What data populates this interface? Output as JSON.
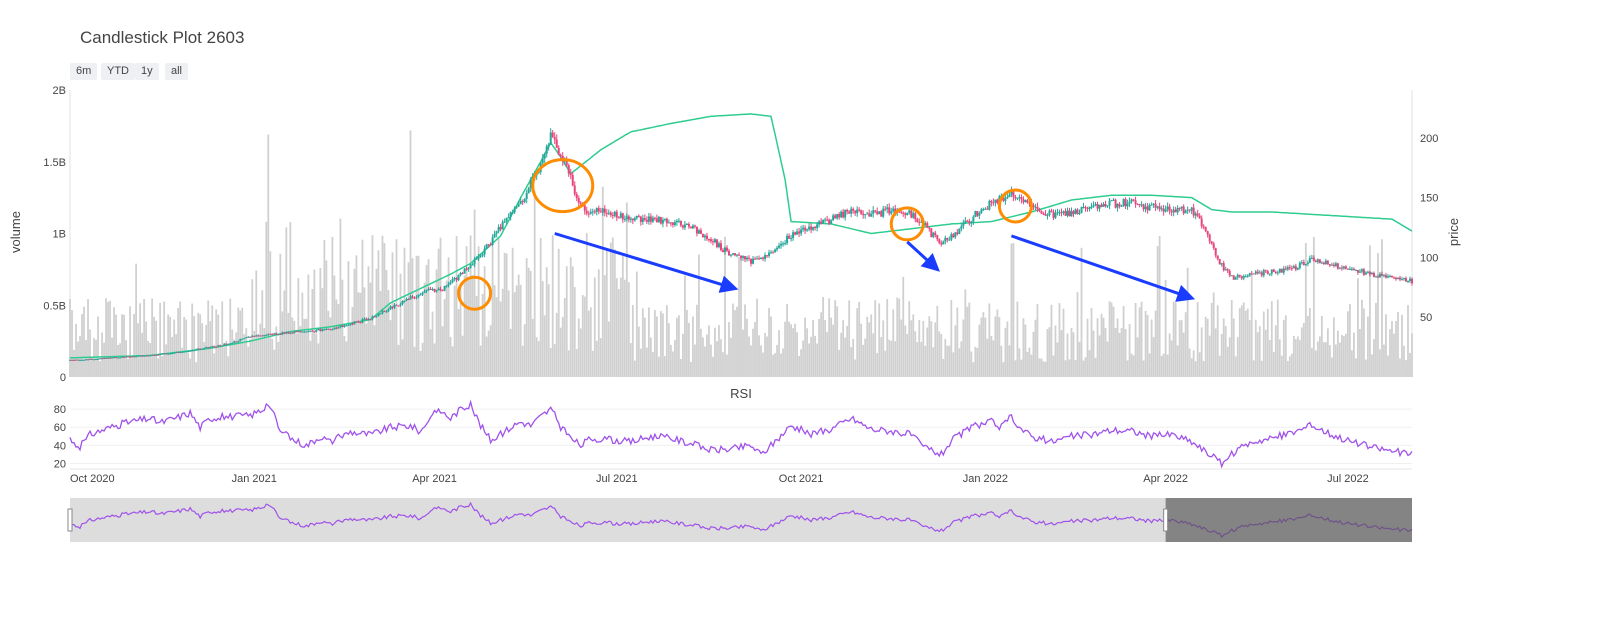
{
  "title": "Candlestick Plot 2603",
  "range_buttons": [
    "6m",
    "YTD",
    "1y",
    "all"
  ],
  "chart_data": {
    "type": "candlestick",
    "price_axis": {
      "title": "price",
      "range": [
        0,
        240
      ],
      "ticks": [
        50,
        100,
        150,
        200
      ]
    },
    "volume_axis": {
      "title": "volume",
      "range": [
        0,
        2000000000
      ],
      "ticks": [
        "0",
        "0.5B",
        "1B",
        "1.5B",
        "2B"
      ]
    },
    "rsi_axis": {
      "title": "RSI",
      "range": [
        15,
        90
      ],
      "ticks": [
        20,
        40,
        60,
        80
      ]
    },
    "x_ticks": [
      "Oct 2020",
      "Jan 2021",
      "Apr 2021",
      "Jul 2021",
      "Oct 2021",
      "Jan 2022",
      "Apr 2022",
      "Jul 2022"
    ],
    "range_selector_window": [
      "Apr 2022",
      "Sep 2022"
    ],
    "price_anchors": [
      [
        0,
        14
      ],
      [
        40,
        18
      ],
      [
        60,
        22
      ],
      [
        80,
        28
      ],
      [
        90,
        34
      ],
      [
        110,
        37
      ],
      [
        130,
        40
      ],
      [
        150,
        49
      ],
      [
        160,
        58
      ],
      [
        170,
        66
      ],
      [
        180,
        74
      ],
      [
        185,
        72
      ],
      [
        195,
        86
      ],
      [
        200,
        92
      ],
      [
        210,
        113
      ],
      [
        215,
        125
      ],
      [
        225,
        146
      ],
      [
        235,
        178
      ],
      [
        240,
        200
      ],
      [
        245,
        185
      ],
      [
        250,
        165
      ],
      [
        253,
        150
      ],
      [
        258,
        140
      ],
      [
        270,
        137
      ],
      [
        285,
        132
      ],
      [
        300,
        130
      ],
      [
        310,
        126
      ],
      [
        320,
        115
      ],
      [
        330,
        102
      ],
      [
        340,
        97
      ],
      [
        350,
        104
      ],
      [
        360,
        118
      ],
      [
        370,
        126
      ],
      [
        380,
        131
      ],
      [
        390,
        140
      ],
      [
        400,
        136
      ],
      [
        410,
        139
      ],
      [
        420,
        136
      ],
      [
        425,
        130
      ],
      [
        430,
        120
      ],
      [
        435,
        112
      ],
      [
        440,
        118
      ],
      [
        450,
        133
      ],
      [
        460,
        145
      ],
      [
        465,
        150
      ],
      [
        470,
        155
      ],
      [
        475,
        148
      ],
      [
        480,
        142
      ],
      [
        490,
        136
      ],
      [
        500,
        138
      ],
      [
        510,
        142
      ],
      [
        520,
        145
      ],
      [
        530,
        146
      ],
      [
        540,
        142
      ],
      [
        550,
        140
      ],
      [
        560,
        140
      ],
      [
        565,
        128
      ],
      [
        570,
        110
      ],
      [
        575,
        93
      ],
      [
        580,
        83
      ],
      [
        590,
        86
      ],
      [
        600,
        88
      ],
      [
        610,
        90
      ],
      [
        620,
        98
      ],
      [
        630,
        94
      ],
      [
        640,
        90
      ],
      [
        650,
        86
      ],
      [
        660,
        82
      ],
      [
        670,
        80
      ]
    ],
    "upper_band_anchors": [
      [
        0,
        16
      ],
      [
        40,
        18
      ],
      [
        70,
        24
      ],
      [
        90,
        30
      ],
      [
        110,
        38
      ],
      [
        130,
        42
      ],
      [
        150,
        48
      ],
      [
        160,
        62
      ],
      [
        180,
        78
      ],
      [
        190,
        86
      ],
      [
        200,
        95
      ],
      [
        215,
        118
      ],
      [
        225,
        150
      ],
      [
        235,
        180
      ],
      [
        240,
        196
      ],
      [
        245,
        184
      ],
      [
        250,
        170
      ],
      [
        265,
        190
      ],
      [
        280,
        205
      ],
      [
        300,
        212
      ],
      [
        320,
        218
      ],
      [
        340,
        220
      ],
      [
        350,
        218
      ],
      [
        357,
        165
      ],
      [
        360,
        130
      ],
      [
        380,
        128
      ],
      [
        400,
        120
      ],
      [
        420,
        124
      ],
      [
        440,
        128
      ],
      [
        460,
        130
      ],
      [
        480,
        138
      ],
      [
        500,
        148
      ],
      [
        520,
        152
      ],
      [
        540,
        152
      ],
      [
        560,
        150
      ],
      [
        570,
        140
      ],
      [
        580,
        138
      ],
      [
        600,
        138
      ],
      [
        620,
        136
      ],
      [
        640,
        134
      ],
      [
        660,
        132
      ],
      [
        670,
        122
      ]
    ],
    "rsi_anchors": [
      [
        0,
        45
      ],
      [
        5,
        38
      ],
      [
        10,
        52
      ],
      [
        20,
        60
      ],
      [
        30,
        66
      ],
      [
        40,
        70
      ],
      [
        45,
        65
      ],
      [
        55,
        72
      ],
      [
        60,
        76
      ],
      [
        65,
        60
      ],
      [
        70,
        70
      ],
      [
        80,
        72
      ],
      [
        90,
        73
      ],
      [
        100,
        84
      ],
      [
        105,
        55
      ],
      [
        110,
        48
      ],
      [
        118,
        40
      ],
      [
        125,
        50
      ],
      [
        130,
        44
      ],
      [
        140,
        55
      ],
      [
        150,
        52
      ],
      [
        160,
        60
      ],
      [
        170,
        62
      ],
      [
        175,
        55
      ],
      [
        180,
        72
      ],
      [
        185,
        78
      ],
      [
        190,
        70
      ],
      [
        195,
        80
      ],
      [
        200,
        85
      ],
      [
        205,
        62
      ],
      [
        210,
        46
      ],
      [
        215,
        52
      ],
      [
        220,
        60
      ],
      [
        225,
        66
      ],
      [
        230,
        62
      ],
      [
        235,
        72
      ],
      [
        240,
        80
      ],
      [
        243,
        70
      ],
      [
        245,
        60
      ],
      [
        250,
        48
      ],
      [
        255,
        40
      ],
      [
        260,
        48
      ],
      [
        270,
        46
      ],
      [
        280,
        44
      ],
      [
        290,
        50
      ],
      [
        300,
        48
      ],
      [
        310,
        42
      ],
      [
        320,
        35
      ],
      [
        330,
        36
      ],
      [
        340,
        40
      ],
      [
        345,
        30
      ],
      [
        350,
        40
      ],
      [
        360,
        62
      ],
      [
        370,
        52
      ],
      [
        380,
        58
      ],
      [
        390,
        70
      ],
      [
        400,
        58
      ],
      [
        410,
        56
      ],
      [
        420,
        52
      ],
      [
        425,
        40
      ],
      [
        430,
        35
      ],
      [
        435,
        30
      ],
      [
        440,
        45
      ],
      [
        450,
        60
      ],
      [
        460,
        66
      ],
      [
        465,
        60
      ],
      [
        470,
        72
      ],
      [
        475,
        58
      ],
      [
        480,
        50
      ],
      [
        490,
        44
      ],
      [
        500,
        50
      ],
      [
        510,
        52
      ],
      [
        520,
        57
      ],
      [
        530,
        56
      ],
      [
        540,
        50
      ],
      [
        550,
        52
      ],
      [
        560,
        44
      ],
      [
        565,
        36
      ],
      [
        570,
        28
      ],
      [
        575,
        20
      ],
      [
        580,
        30
      ],
      [
        590,
        44
      ],
      [
        600,
        48
      ],
      [
        610,
        54
      ],
      [
        620,
        62
      ],
      [
        630,
        52
      ],
      [
        640,
        44
      ],
      [
        650,
        38
      ],
      [
        660,
        34
      ],
      [
        670,
        30
      ]
    ],
    "annotations": [
      {
        "kind": "circle",
        "x_index": 202,
        "price": 70
      },
      {
        "kind": "circle",
        "x_index": 246,
        "price": 160
      },
      {
        "kind": "circle",
        "x_index": 418,
        "price": 128
      },
      {
        "kind": "circle",
        "x_index": 472,
        "price": 143
      },
      {
        "kind": "arrow",
        "from": [
          242,
          120
        ],
        "to": [
          332,
          74
        ]
      },
      {
        "kind": "arrow",
        "from": [
          418,
          113
        ],
        "to": [
          433,
          90
        ]
      },
      {
        "kind": "arrow",
        "from": [
          470,
          118
        ],
        "to": [
          560,
          66
        ]
      }
    ]
  },
  "colors": {
    "up": "#26a69a",
    "down": "#e8457a",
    "band": "#2ecc8f",
    "rsi": "#a052ea",
    "volume": "#d0d0d0",
    "annotation": "#ff8c00",
    "arrow": "#1a3cff"
  }
}
